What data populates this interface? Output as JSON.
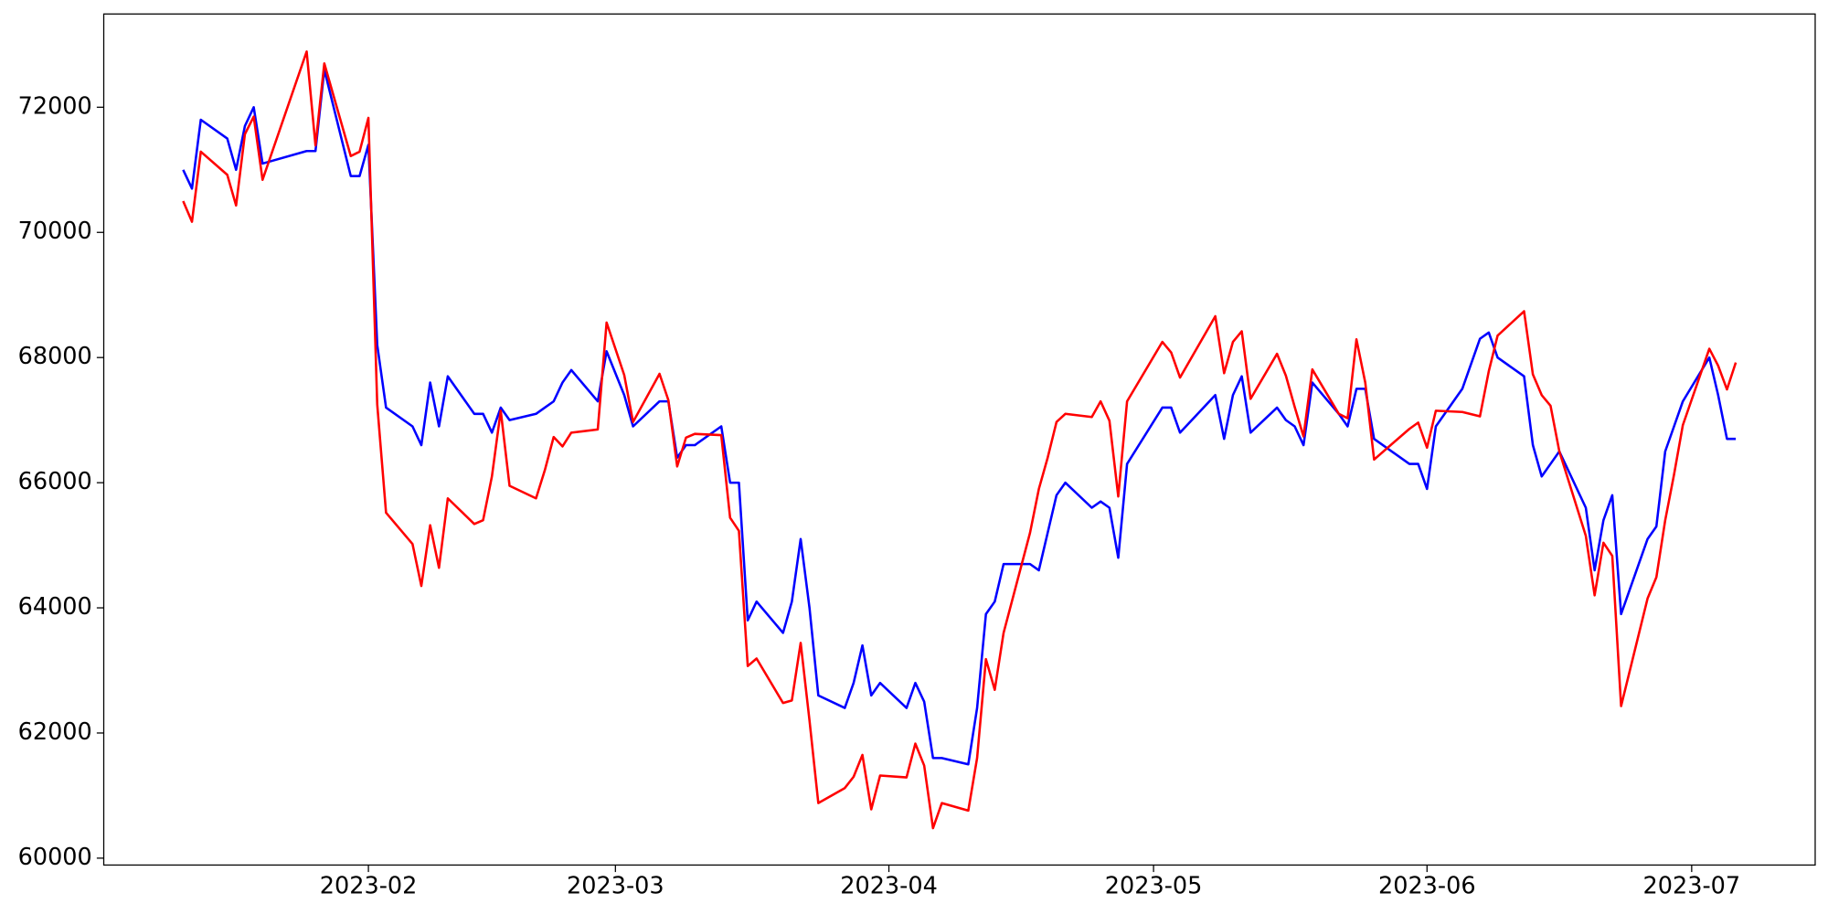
{
  "chart_data": {
    "type": "line",
    "x": [
      "2023-01-11",
      "2023-01-12",
      "2023-01-13",
      "2023-01-16",
      "2023-01-17",
      "2023-01-18",
      "2023-01-19",
      "2023-01-20",
      "2023-01-25",
      "2023-01-26",
      "2023-01-27",
      "2023-01-30",
      "2023-01-31",
      "2023-02-01",
      "2023-02-02",
      "2023-02-03",
      "2023-02-06",
      "2023-02-07",
      "2023-02-08",
      "2023-02-09",
      "2023-02-10",
      "2023-02-13",
      "2023-02-14",
      "2023-02-15",
      "2023-02-16",
      "2023-02-17",
      "2023-02-20",
      "2023-02-21",
      "2023-02-22",
      "2023-02-23",
      "2023-02-24",
      "2023-02-27",
      "2023-02-28",
      "2023-03-02",
      "2023-03-03",
      "2023-03-06",
      "2023-03-07",
      "2023-03-08",
      "2023-03-09",
      "2023-03-10",
      "2023-03-13",
      "2023-03-14",
      "2023-03-15",
      "2023-03-16",
      "2023-03-17",
      "2023-03-20",
      "2023-03-21",
      "2023-03-22",
      "2023-03-23",
      "2023-03-24",
      "2023-03-27",
      "2023-03-28",
      "2023-03-29",
      "2023-03-30",
      "2023-03-31",
      "2023-04-03",
      "2023-04-04",
      "2023-04-05",
      "2023-04-06",
      "2023-04-07",
      "2023-04-10",
      "2023-04-11",
      "2023-04-12",
      "2023-04-13",
      "2023-04-14",
      "2023-04-17",
      "2023-04-18",
      "2023-04-19",
      "2023-04-20",
      "2023-04-21",
      "2023-04-24",
      "2023-04-25",
      "2023-04-26",
      "2023-04-27",
      "2023-04-28",
      "2023-05-02",
      "2023-05-03",
      "2023-05-04",
      "2023-05-08",
      "2023-05-09",
      "2023-05-10",
      "2023-05-11",
      "2023-05-12",
      "2023-05-15",
      "2023-05-16",
      "2023-05-17",
      "2023-05-18",
      "2023-05-19",
      "2023-05-22",
      "2023-05-23",
      "2023-05-24",
      "2023-05-25",
      "2023-05-26",
      "2023-05-30",
      "2023-05-31",
      "2023-06-01",
      "2023-06-02",
      "2023-06-05",
      "2023-06-07",
      "2023-06-08",
      "2023-06-09",
      "2023-06-12",
      "2023-06-13",
      "2023-06-14",
      "2023-06-15",
      "2023-06-16",
      "2023-06-19",
      "2023-06-20",
      "2023-06-21",
      "2023-06-22",
      "2023-06-23",
      "2023-06-26",
      "2023-06-27",
      "2023-06-28",
      "2023-06-29",
      "2023-06-30",
      "2023-07-03",
      "2023-07-04",
      "2023-07-05",
      "2023-07-06"
    ],
    "series": [
      {
        "color": "#0000ff",
        "values": [
          71000,
          70700,
          71800,
          71500,
          71000,
          71700,
          72000,
          71100,
          71300,
          71300,
          72600,
          70900,
          70900,
          71400,
          68200,
          67200,
          66900,
          66600,
          67600,
          66900,
          67700,
          67100,
          67100,
          66800,
          67200,
          67000,
          67100,
          67200,
          67300,
          67600,
          67800,
          67300,
          68100,
          67400,
          66900,
          67300,
          67300,
          66400,
          66600,
          66600,
          66900,
          66000,
          66000,
          63800,
          64100,
          63600,
          64100,
          65100,
          64000,
          62600,
          62400,
          62800,
          63400,
          62600,
          62800,
          62400,
          62800,
          62500,
          61600,
          61600,
          61500,
          62400,
          63900,
          64100,
          64700,
          64700,
          64600,
          65200,
          65800,
          66000,
          65600,
          65700,
          65600,
          64800,
          66300,
          67200,
          67200,
          66800,
          67400,
          66700,
          67400,
          67700,
          66800,
          67200,
          67000,
          66900,
          66600,
          67600,
          67100,
          66900,
          67500,
          67500,
          66700,
          66300,
          66300,
          65900,
          66900,
          67500,
          68300,
          68400,
          68000,
          67700,
          66600,
          66100,
          66300,
          66500,
          65600,
          64600,
          65400,
          65800,
          63900,
          65100,
          65300,
          66500,
          66900,
          67300,
          68000,
          67400,
          66700,
          66700
        ]
      },
      {
        "color": "#ff0000",
        "values": [
          70500,
          70170,
          71290,
          70920,
          70430,
          71570,
          71850,
          70840,
          72890,
          71390,
          72700,
          71220,
          71290,
          71830,
          67250,
          65520,
          65020,
          64350,
          65320,
          64640,
          65750,
          65340,
          65400,
          66100,
          67150,
          65950,
          65750,
          66200,
          66730,
          66580,
          66800,
          66850,
          68560,
          67720,
          66970,
          67740,
          67320,
          66260,
          66720,
          66780,
          66760,
          65440,
          65230,
          63070,
          63190,
          62480,
          62520,
          63440,
          62200,
          60880,
          61120,
          61300,
          61650,
          60780,
          61320,
          61290,
          61830,
          61480,
          60480,
          60880,
          60760,
          61600,
          63180,
          62690,
          63600,
          65200,
          65900,
          66400,
          66970,
          67100,
          67050,
          67300,
          66990,
          65780,
          67300,
          68250,
          68080,
          67680,
          68660,
          67750,
          68250,
          68420,
          67340,
          68060,
          67710,
          67210,
          66740,
          67810,
          67100,
          67030,
          68290,
          67600,
          66370,
          66860,
          66960,
          66560,
          67150,
          67130,
          67060,
          67780,
          68350,
          68740,
          67730,
          67400,
          67230,
          66500,
          65150,
          64200,
          65040,
          64830,
          62430,
          64150,
          64490,
          65400,
          66130,
          66920,
          68140,
          67870,
          67490,
          67920
        ]
      }
    ],
    "xlim": [
      "2023-01-02",
      "2023-07-15"
    ],
    "xticks": [
      "2023-02",
      "2023-03",
      "2023-04",
      "2023-05",
      "2023-06",
      "2023-07"
    ],
    "ylim": [
      59890,
      73490
    ],
    "yticks": [
      60000,
      62000,
      64000,
      66000,
      68000,
      70000,
      72000
    ],
    "grid": false
  }
}
